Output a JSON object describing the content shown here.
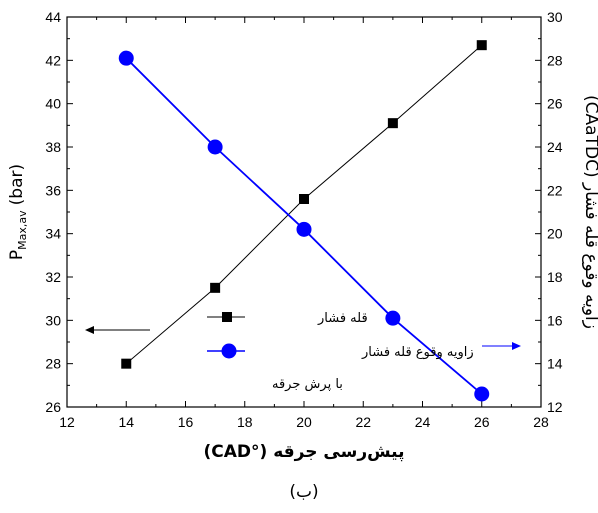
{
  "chart_data": {
    "type": "line",
    "x": [
      14,
      17,
      20,
      23,
      26
    ],
    "xlabel": "پیش‌رسی جرقه (°CAD)",
    "xlim": [
      12,
      28
    ],
    "xticks": [
      "12",
      "14",
      "16",
      "18",
      "20",
      "22",
      "24",
      "26",
      "28"
    ],
    "ylabel_left_main": "P",
    "ylabel_left_sub": "Max,av",
    "ylabel_left_unit": "(bar)",
    "ylim_left": [
      26,
      44
    ],
    "yticks_left": [
      "26",
      "28",
      "30",
      "32",
      "34",
      "36",
      "38",
      "40",
      "42",
      "44"
    ],
    "ylabel_right": "زاویه وقوع قله فشار (CAaTDC)",
    "ylim_right": [
      12,
      30
    ],
    "yticks_right": [
      "12",
      "14",
      "16",
      "18",
      "20",
      "22",
      "24",
      "26",
      "28",
      "30"
    ],
    "series": [
      {
        "name": "قله فشار",
        "axis": "left",
        "marker": "square",
        "color": "#000000",
        "values": [
          28.0,
          31.5,
          35.6,
          39.1,
          42.7
        ]
      },
      {
        "name": "زاویه وقوع قله فشار",
        "axis": "right",
        "marker": "circle",
        "color": "#0000ff",
        "values": [
          28.1,
          24.0,
          20.2,
          16.1,
          12.6
        ]
      }
    ],
    "legend_note": "با پرش جرقه",
    "legend_position": "bottom-right",
    "grid": false
  },
  "caption": "(ب)"
}
